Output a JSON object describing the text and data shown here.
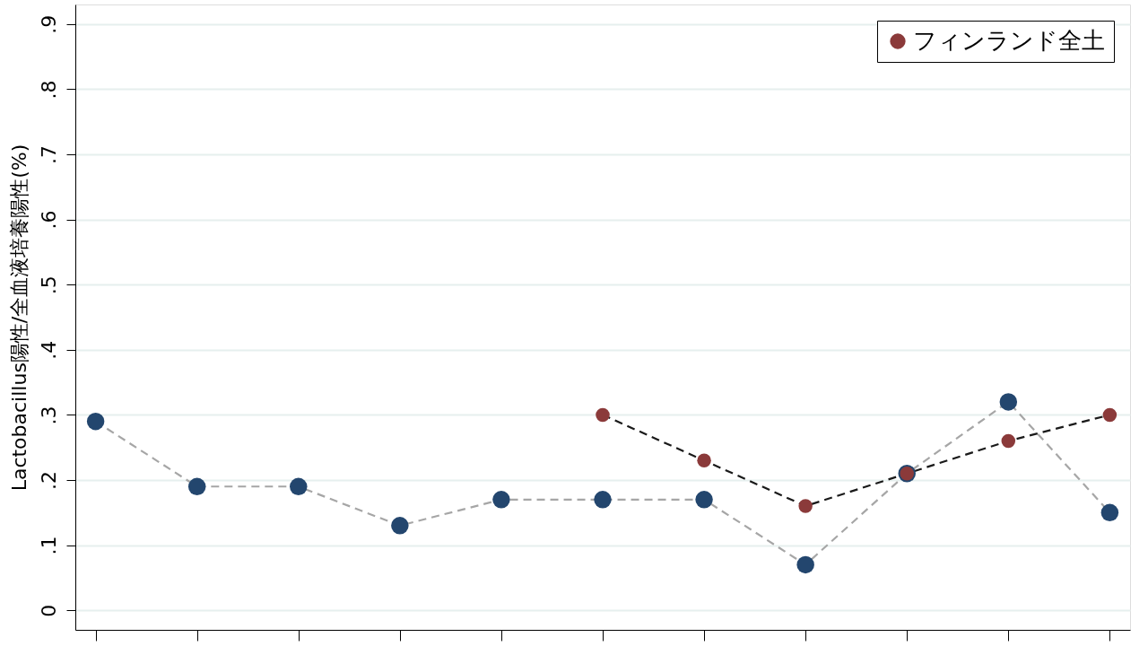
{
  "chart_data": {
    "type": "line",
    "ylabel": "Lactobacillus陽性/全血液培養陽性(%)",
    "categories": [
      null,
      null,
      null,
      null,
      null,
      null,
      null,
      null,
      null,
      null,
      null
    ],
    "series": [
      {
        "color": "#23466e",
        "values": [
          0.29,
          0.19,
          0.19,
          0.13,
          0.17,
          0.17,
          0.17,
          0.07,
          0.21,
          0.32,
          0.15
        ]
      },
      {
        "name": "フィンランド全土",
        "color": "#8b3a3a",
        "values": [
          null,
          null,
          null,
          null,
          null,
          0.3,
          0.23,
          0.16,
          0.21,
          0.26,
          0.3
        ]
      }
    ],
    "ylim": [
      -0.03,
      0.93
    ],
    "yticks": [
      0,
      {
        "value": 0.1,
        "label": ".1"
      },
      {
        "value": 0.2,
        "label": ".2"
      },
      {
        "value": 0.3,
        "label": ".3"
      },
      {
        "value": 0.4,
        "label": ".4"
      },
      {
        "value": 0.5,
        "label": ".5"
      },
      {
        "value": 0.6,
        "label": ".6"
      },
      {
        "value": 0.7,
        "label": ".7"
      },
      {
        "value": 0.8,
        "label": ".8"
      },
      {
        "value": 0.9,
        "label": ".9"
      }
    ],
    "grid": "y",
    "legend": "top right",
    "marker": "circle",
    "line_style": "dashed",
    "tick_labels": "y"
  }
}
